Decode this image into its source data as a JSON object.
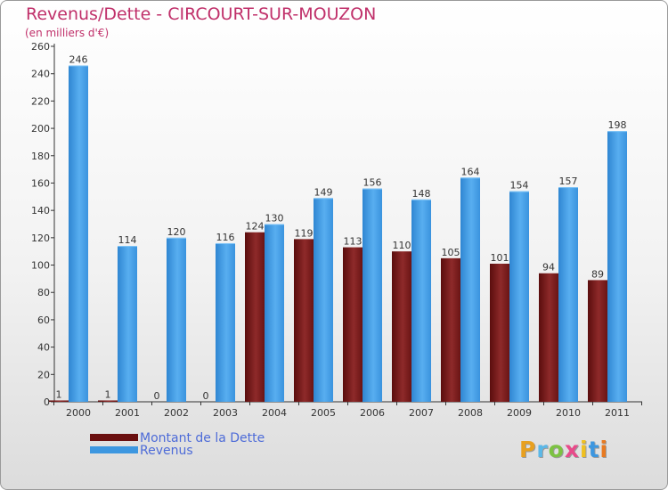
{
  "chart_data": {
    "type": "bar",
    "title": "Revenus/Dette - CIRCOURT-SUR-MOUZON",
    "subtitle": "(en milliers d'€)",
    "categories": [
      "2000",
      "2001",
      "2002",
      "2003",
      "2004",
      "2005",
      "2006",
      "2007",
      "2008",
      "2009",
      "2010",
      "2011"
    ],
    "series": [
      {
        "name": "Montant de la Dette",
        "values": [
          1,
          1,
          0,
          0,
          124,
          119,
          113,
          110,
          105,
          101,
          94,
          89
        ],
        "color": "#7a1a1a"
      },
      {
        "name": "Revenus",
        "values": [
          246,
          114,
          120,
          116,
          130,
          149,
          156,
          148,
          164,
          154,
          157,
          198
        ],
        "color": "#3d97e0"
      }
    ],
    "ylim": [
      0,
      260
    ],
    "yticks": [
      0,
      20,
      40,
      60,
      80,
      100,
      120,
      140,
      160,
      180,
      200,
      220,
      240,
      260
    ],
    "grid": false,
    "legend_position": "bottom-left"
  },
  "logo": {
    "text": "Proxiti",
    "letter_colors": [
      "#e8a020",
      "#5bb8e8",
      "#7cc242",
      "#e84a8a",
      "#f0c020",
      "#3d97e0",
      "#e87a20"
    ]
  }
}
